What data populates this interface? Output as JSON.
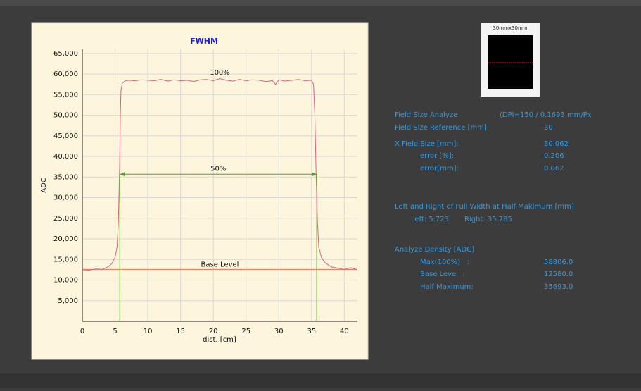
{
  "chart_data": {
    "type": "line",
    "title": "FWHM",
    "x_label": "dist. [cm]",
    "y_label": "ADC",
    "x": [
      0,
      1,
      2,
      3,
      3.5,
      4,
      4.5,
      5,
      5.3,
      5.5,
      5.7,
      5.8,
      5.9,
      6.1,
      6.5,
      7,
      8,
      9,
      10,
      11,
      12,
      13,
      14,
      15,
      16,
      17,
      18,
      19,
      20,
      21,
      22,
      23,
      24,
      25,
      26,
      27,
      28,
      29,
      29.5,
      30,
      31,
      32,
      33,
      34,
      35,
      35.3,
      35.5,
      35.7,
      35.9,
      36.1,
      36.5,
      37,
      38,
      39,
      40,
      41,
      42
    ],
    "series": [
      {
        "color": "#e0607a",
        "values": [
          12500,
          12400,
          12700,
          12600,
          12900,
          13300,
          14000,
          15500,
          18000,
          24000,
          38000,
          50000,
          56000,
          57800,
          58300,
          58500,
          58400,
          58600,
          58500,
          58400,
          58700,
          58300,
          58600,
          58400,
          58500,
          58200,
          58600,
          58700,
          58400,
          58900,
          58500,
          58300,
          58700,
          58400,
          58600,
          58500,
          58200,
          58400,
          57500,
          58600,
          58300,
          58500,
          58700,
          58400,
          58500,
          57500,
          50000,
          35000,
          24000,
          18000,
          15500,
          14300,
          13200,
          12900,
          12600,
          13000,
          12500
        ]
      }
    ],
    "xlim": [
      0,
      42
    ],
    "xticks": [
      0,
      5,
      10,
      15,
      20,
      25,
      30,
      35,
      40
    ],
    "ylim": [
      0,
      66000
    ],
    "yticks": [
      {
        "value": 5000,
        "label": "5,000"
      },
      {
        "value": 10000,
        "label": "10,000"
      },
      {
        "value": 15000,
        "label": "15,000"
      },
      {
        "value": 20000,
        "label": "20,000"
      },
      {
        "value": 25000,
        "label": "25,000"
      },
      {
        "value": 30000,
        "label": "30,000"
      },
      {
        "value": 35000,
        "label": "35,000"
      },
      {
        "value": 40000,
        "label": "40,000"
      },
      {
        "value": 45000,
        "label": "45,000"
      },
      {
        "value": 50000,
        "label": "50,000"
      },
      {
        "value": 55000,
        "label": "55,000"
      },
      {
        "value": 60000,
        "label": "60,000"
      },
      {
        "value": 65000,
        "label": "65,000"
      }
    ],
    "grid": true,
    "peak": {
      "label": "100%",
      "x": 21,
      "value": 58806
    },
    "half": {
      "label": "50%",
      "value": 35693,
      "x_start": 5.723,
      "x_end": 35.785,
      "color": "#5aa02c"
    },
    "base": {
      "label": "Base Level",
      "value": 12580,
      "color": "#f07050"
    }
  },
  "panel": {
    "thumbnail_label": "30mmx30mm",
    "title": "Field Size Analyze",
    "dpi": "(DPI=150 / 0.1693 mm/Px",
    "reference": {
      "label": "Field Size Reference [mm]:",
      "value": "30"
    },
    "x_field_size": {
      "label": "X Field Size [mm]:",
      "value": "30.062"
    },
    "error_pct": {
      "label": "error [%]:",
      "value": "0.206"
    },
    "error_mm": {
      "label": "error[mm]:",
      "value": "0.062"
    },
    "fwhm_title": "Left and Right of Full Width at Half Makimum [mm]",
    "left": "Left: 5.723",
    "right": "Right: 35.785",
    "density_title": "Analyze Density [ADC]",
    "max": {
      "label": "Max(100%)   :",
      "value": "58806.0"
    },
    "base_level": {
      "label": "Base Level  :",
      "value": "12580.0"
    },
    "half_max": {
      "label": "Half Maximum:",
      "value": "35693.0"
    }
  }
}
